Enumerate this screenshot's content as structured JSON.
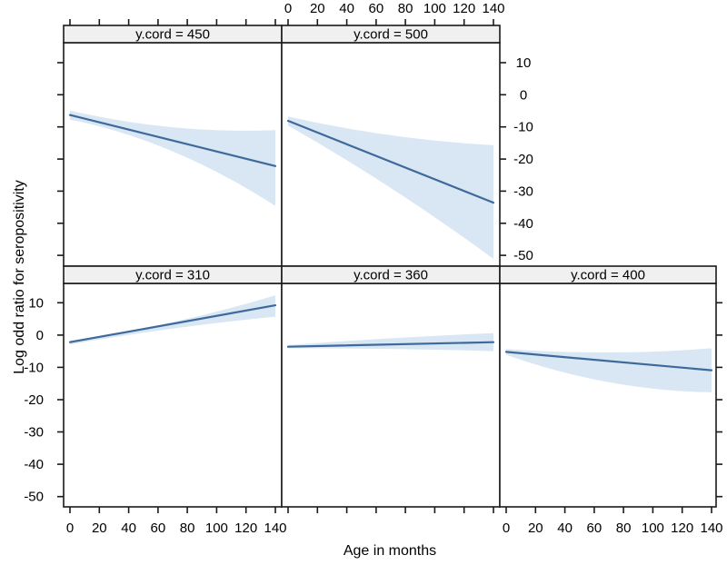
{
  "chart_data": {
    "type": "line",
    "title": "",
    "xlabel": "Age in months",
    "ylabel": "Log odd ratio for seropositivity",
    "x_ticks": [
      0,
      20,
      40,
      60,
      80,
      100,
      120,
      140
    ],
    "y_ticks": [
      10,
      0,
      -10,
      -20,
      -30,
      -40,
      -50
    ],
    "x_range": [
      0,
      140
    ],
    "ylim": [
      -53,
      16
    ],
    "grid": false,
    "legend": "none",
    "panels": [
      {
        "label": "y.cord = 450",
        "row": 0,
        "col": 0,
        "line": {
          "x": [
            0,
            140
          ],
          "y": [
            -6.3,
            -22.2
          ]
        },
        "band": {
          "x": [
            0,
            70,
            140
          ],
          "upper": [
            -4.9,
            -10.1,
            -11.0
          ],
          "lower": [
            -7.7,
            -17.6,
            -34.6
          ]
        }
      },
      {
        "label": "y.cord = 500",
        "row": 0,
        "col": 1,
        "line": {
          "x": [
            0,
            140
          ],
          "y": [
            -8.1,
            -33.6
          ]
        },
        "band": {
          "x": [
            0,
            70,
            140
          ],
          "upper": [
            -6.8,
            -12.6,
            -15.7
          ],
          "lower": [
            -9.6,
            -29.0,
            -51.1
          ]
        }
      },
      {
        "label": "y.cord = 310",
        "row": 1,
        "col": 0,
        "line": {
          "x": [
            0,
            140
          ],
          "y": [
            -2.2,
            9.2
          ]
        },
        "band": {
          "x": [
            0,
            70,
            140
          ],
          "upper": [
            -1.7,
            4.0,
            12.3
          ],
          "lower": [
            -2.9,
            2.0,
            5.7
          ]
        }
      },
      {
        "label": "y.cord = 360",
        "row": 1,
        "col": 1,
        "line": {
          "x": [
            0,
            140
          ],
          "y": [
            -3.6,
            -2.2
          ]
        },
        "band": {
          "x": [
            0,
            70,
            140
          ],
          "upper": [
            -3.1,
            -1.0,
            0.6
          ],
          "lower": [
            -4.1,
            -4.3,
            -5.0
          ]
        }
      },
      {
        "label": "y.cord = 400",
        "row": 1,
        "col": 2,
        "line": {
          "x": [
            0,
            140
          ],
          "y": [
            -5.2,
            -10.9
          ]
        },
        "band": {
          "x": [
            0,
            70,
            140
          ],
          "upper": [
            -4.3,
            -5.4,
            -4.1
          ],
          "lower": [
            -6.1,
            -14.6,
            -17.7
          ]
        }
      }
    ],
    "colors": {
      "line": "#3d6a9b",
      "band": "#d9e6f4",
      "strip_bg": "#f0f0f0",
      "border": "#1a1a1a",
      "text": "#000000",
      "panel_bg": "#ffffff"
    }
  }
}
